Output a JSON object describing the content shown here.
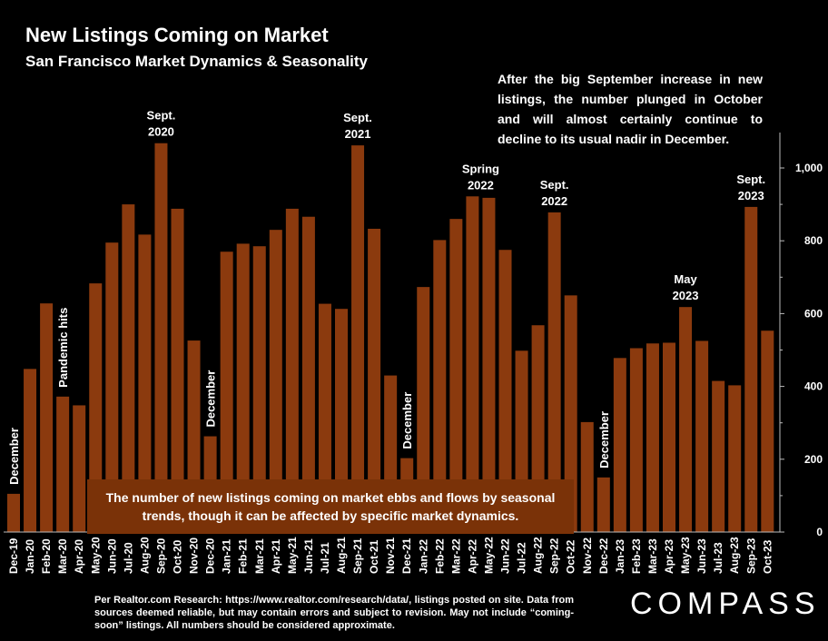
{
  "title": "New Listings Coming on Market",
  "subtitle": "San Francisco Market Dynamics & Seasonality",
  "note": "After the big September increase in new listings, the number plunged in October and will almost certainly continue to decline to its usual nadir in December.",
  "bottom_note": "The number of new listings coming on market ebbs and flows by seasonal trends, though it can be affected by specific market dynamics.",
  "source": "Per Realtor.com Research: https://www.realtor.com/research/data/, listings posted on site. Data from sources deemed reliable, but may contain errors and subject to revision. May not include “coming-soon” listings. All numbers should be considered approximate.",
  "logo": "COMPASS",
  "colors": {
    "bar": "#8b3a0e",
    "background": "#000000",
    "note_box": "#7a3208"
  },
  "chart_data": {
    "type": "bar",
    "categories": [
      "Dec-19",
      "Jan-20",
      "Feb-20",
      "Mar-20",
      "Apr-20",
      "May-20",
      "Jun-20",
      "Jul-20",
      "Aug-20",
      "Sep-20",
      "Oct-20",
      "Nov-20",
      "Dec-20",
      "Jan-21",
      "Feb-21",
      "Mar-21",
      "Apr-21",
      "May-21",
      "Jun-21",
      "Jul-21",
      "Aug-21",
      "Sep-21",
      "Oct-21",
      "Nov-21",
      "Dec-21",
      "Jan-22",
      "Feb-22",
      "Mar-22",
      "Apr-22",
      "May-22",
      "Jun-22",
      "Jul-22",
      "Aug-22",
      "Sep-22",
      "Oct-22",
      "Nov-22",
      "Dec-22",
      "Jan-23",
      "Feb-23",
      "Mar-23",
      "Apr-23",
      "May-23",
      "Jun-23",
      "Jul-23",
      "Aug-23",
      "Sep-23",
      "Oct-23"
    ],
    "values": [
      105,
      448,
      628,
      372,
      348,
      683,
      795,
      900,
      817,
      1068,
      888,
      526,
      263,
      770,
      792,
      785,
      830,
      888,
      866,
      627,
      613,
      1062,
      833,
      430,
      203,
      673,
      802,
      860,
      922,
      918,
      775,
      498,
      568,
      878,
      650,
      302,
      150,
      478,
      505,
      518,
      520,
      618,
      525,
      415,
      403,
      893,
      553
    ],
    "ylim": [
      0,
      1000
    ],
    "yticks": [
      "0",
      "200",
      "400",
      "600",
      "800",
      "1,000"
    ],
    "annotations": [
      {
        "text": [
          "December"
        ],
        "index": 0,
        "vertical": true
      },
      {
        "text": [
          "Pandemic hits"
        ],
        "index": 3,
        "vertical": true
      },
      {
        "text": [
          "Sept.",
          "2020"
        ],
        "index": 9,
        "vertical": false
      },
      {
        "text": [
          "December"
        ],
        "index": 12,
        "vertical": true
      },
      {
        "text": [
          "Sept.",
          "2021"
        ],
        "index": 21,
        "vertical": false
      },
      {
        "text": [
          "December"
        ],
        "index": 24,
        "vertical": true
      },
      {
        "text": [
          "Spring",
          "2022"
        ],
        "index": 28.5,
        "vertical": false
      },
      {
        "text": [
          "Sept.",
          "2022"
        ],
        "index": 33,
        "vertical": false
      },
      {
        "text": [
          "December"
        ],
        "index": 36,
        "vertical": true
      },
      {
        "text": [
          "May",
          "2023"
        ],
        "index": 41,
        "vertical": false
      },
      {
        "text": [
          "Sept.",
          "2023"
        ],
        "index": 45,
        "vertical": false
      }
    ]
  }
}
